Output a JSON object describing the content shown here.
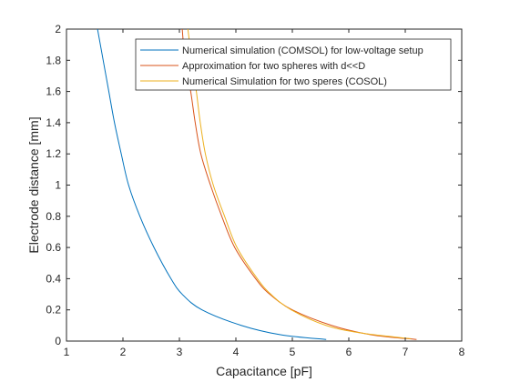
{
  "chart_data": {
    "type": "line",
    "xlabel": "Capacitance [pF]",
    "ylabel": "Electrode distance [mm]",
    "xlim": [
      1,
      8
    ],
    "ylim": [
      0,
      2
    ],
    "xticks": [
      "1",
      "2",
      "3",
      "4",
      "5",
      "6",
      "7",
      "8"
    ],
    "yticks": [
      "0",
      "0.2",
      "0.4",
      "0.6",
      "0.8",
      "1",
      "1.2",
      "1.4",
      "1.6",
      "1.8",
      "2"
    ],
    "grid": false,
    "legend_position": "top-right",
    "series": [
      {
        "name": "Numerical simulation (COMSOL) for low-voltage setup",
        "color": "#0072BD",
        "points": [
          [
            1.55,
            2.0
          ],
          [
            1.65,
            1.8
          ],
          [
            1.75,
            1.6
          ],
          [
            1.85,
            1.4
          ],
          [
            1.97,
            1.2
          ],
          [
            2.1,
            1.0
          ],
          [
            2.3,
            0.8
          ],
          [
            2.55,
            0.6
          ],
          [
            2.85,
            0.4
          ],
          [
            3.05,
            0.3
          ],
          [
            3.4,
            0.2
          ],
          [
            4.1,
            0.1
          ],
          [
            4.8,
            0.04
          ],
          [
            5.6,
            0.01
          ]
        ]
      },
      {
        "name": "Approximation for two spheres with d<<D",
        "color": "#D95319",
        "points": [
          [
            3.05,
            2.0
          ],
          [
            3.1,
            1.8
          ],
          [
            3.2,
            1.6
          ],
          [
            3.28,
            1.4
          ],
          [
            3.38,
            1.2
          ],
          [
            3.55,
            1.0
          ],
          [
            3.75,
            0.8
          ],
          [
            3.98,
            0.6
          ],
          [
            4.35,
            0.4
          ],
          [
            4.6,
            0.3
          ],
          [
            5.0,
            0.2
          ],
          [
            5.7,
            0.1
          ],
          [
            6.4,
            0.04
          ],
          [
            7.2,
            0.01
          ]
        ]
      },
      {
        "name": "Numerical Simulation for two speres (COSOL)",
        "color": "#EDB120",
        "points": [
          [
            3.15,
            2.0
          ],
          [
            3.22,
            1.8
          ],
          [
            3.3,
            1.6
          ],
          [
            3.37,
            1.4
          ],
          [
            3.46,
            1.2
          ],
          [
            3.6,
            1.0
          ],
          [
            3.8,
            0.8
          ],
          [
            4.02,
            0.6
          ],
          [
            4.38,
            0.4
          ],
          [
            4.62,
            0.3
          ],
          [
            4.98,
            0.2
          ],
          [
            5.6,
            0.1
          ],
          [
            6.25,
            0.05
          ],
          [
            7.1,
            0.015
          ]
        ]
      }
    ]
  }
}
